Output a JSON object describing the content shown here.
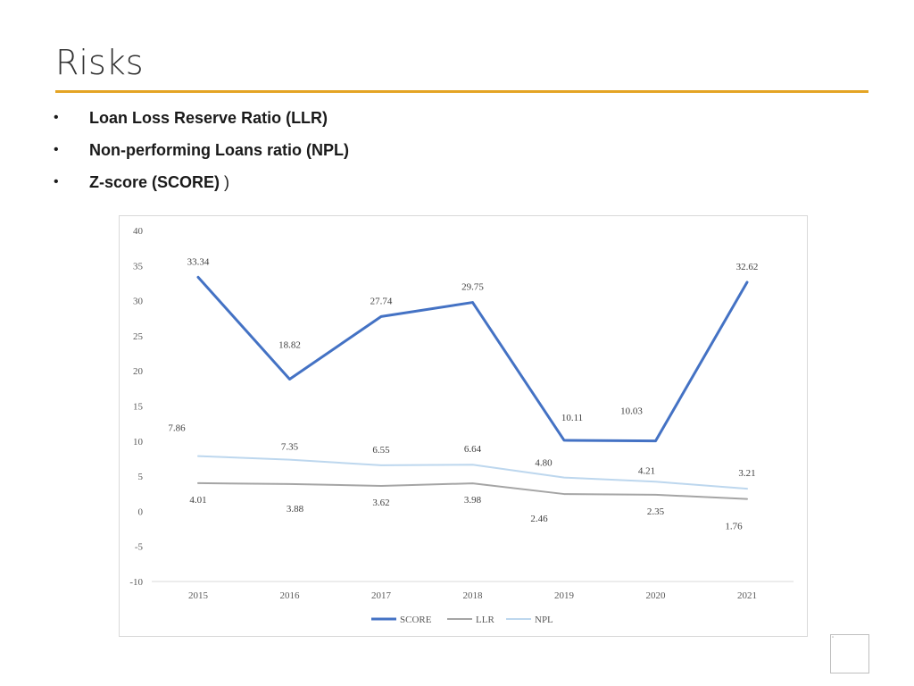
{
  "slide": {
    "title": "Risks",
    "bullets": [
      {
        "label": "Loan Loss Reserve Ratio (LLR)",
        "suffix": ""
      },
      {
        "label": "Non-performing Loans ratio (NPL)",
        "suffix": ""
      },
      {
        "label": "Z-score (SCORE)",
        "suffix": " )"
      }
    ],
    "bullet_char": "•",
    "accent_color": "#E4A424"
  },
  "chart_data": {
    "type": "line",
    "title": "",
    "xlabel": "",
    "ylabel": "",
    "categories": [
      "2015",
      "2016",
      "2017",
      "2018",
      "2019",
      "2020",
      "2021"
    ],
    "ylim": [
      -10,
      40
    ],
    "yticks": [
      40,
      35,
      30,
      25,
      20,
      15,
      10,
      5,
      0,
      -5,
      -10
    ],
    "grid": false,
    "legend_position": "bottom",
    "series": [
      {
        "name": "SCORE",
        "color": "#4472C4",
        "values": [
          33.34,
          18.82,
          27.74,
          29.75,
          10.11,
          10.03,
          32.62
        ],
        "labels": [
          "33.34",
          "18.82",
          "27.74",
          "29.75",
          "10.11",
          "10.03",
          "32.62"
        ]
      },
      {
        "name": "LLR",
        "color": "#A5A5A5",
        "values": [
          4.01,
          3.88,
          3.62,
          3.98,
          2.46,
          2.35,
          1.76
        ],
        "labels": [
          "4.01",
          "3.88",
          "3.62",
          "3.98",
          "2.46",
          "2.35",
          "1.76"
        ]
      },
      {
        "name": "NPL",
        "color": "#BDD7EE",
        "values": [
          7.86,
          7.35,
          6.55,
          6.64,
          4.8,
          4.21,
          3.21
        ],
        "labels": [
          "7.86",
          "7.35",
          "6.55",
          "6.64",
          "4.80",
          "4.21",
          "3.21"
        ]
      }
    ]
  }
}
